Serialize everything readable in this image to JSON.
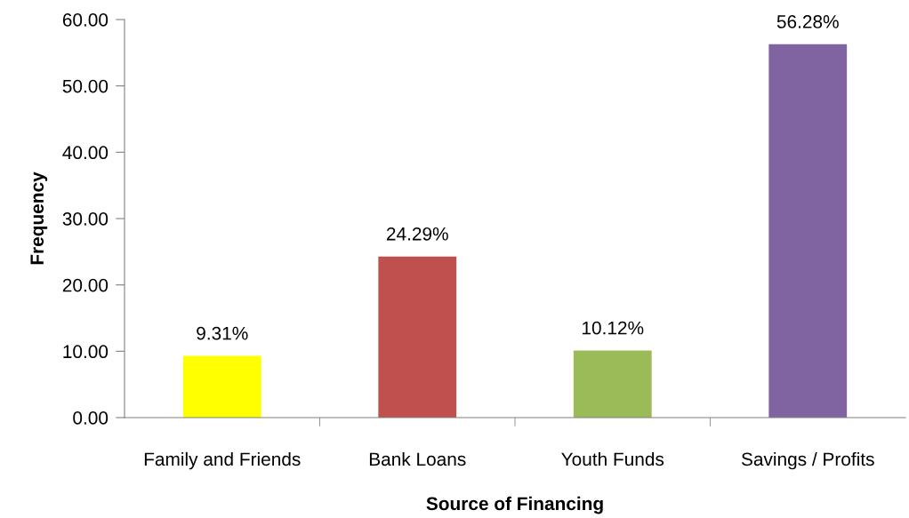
{
  "chart_data": {
    "type": "bar",
    "xlabel": "Source of Financing",
    "ylabel": "Frequency",
    "categories": [
      "Family and Friends",
      "Bank Loans",
      "Youth Funds",
      "Savings / Profits"
    ],
    "values": [
      9.31,
      24.29,
      10.12,
      56.28
    ],
    "colors": [
      "#ffff00",
      "#c0504d",
      "#9bbb59",
      "#8064a2"
    ],
    "value_labels": [
      "9.31%",
      "24.29%",
      "10.12%",
      "56.28%"
    ],
    "ylim": [
      0,
      60
    ],
    "yticks": [
      {
        "value": 0,
        "label": "0.00"
      },
      {
        "value": 10,
        "label": "10.00"
      },
      {
        "value": 20,
        "label": "20.00"
      },
      {
        "value": 30,
        "label": "30.00"
      },
      {
        "value": 40,
        "label": "40.00"
      },
      {
        "value": 50,
        "label": "50.00"
      },
      {
        "value": 60,
        "label": "60.00"
      }
    ],
    "grid": false,
    "legend": false
  }
}
